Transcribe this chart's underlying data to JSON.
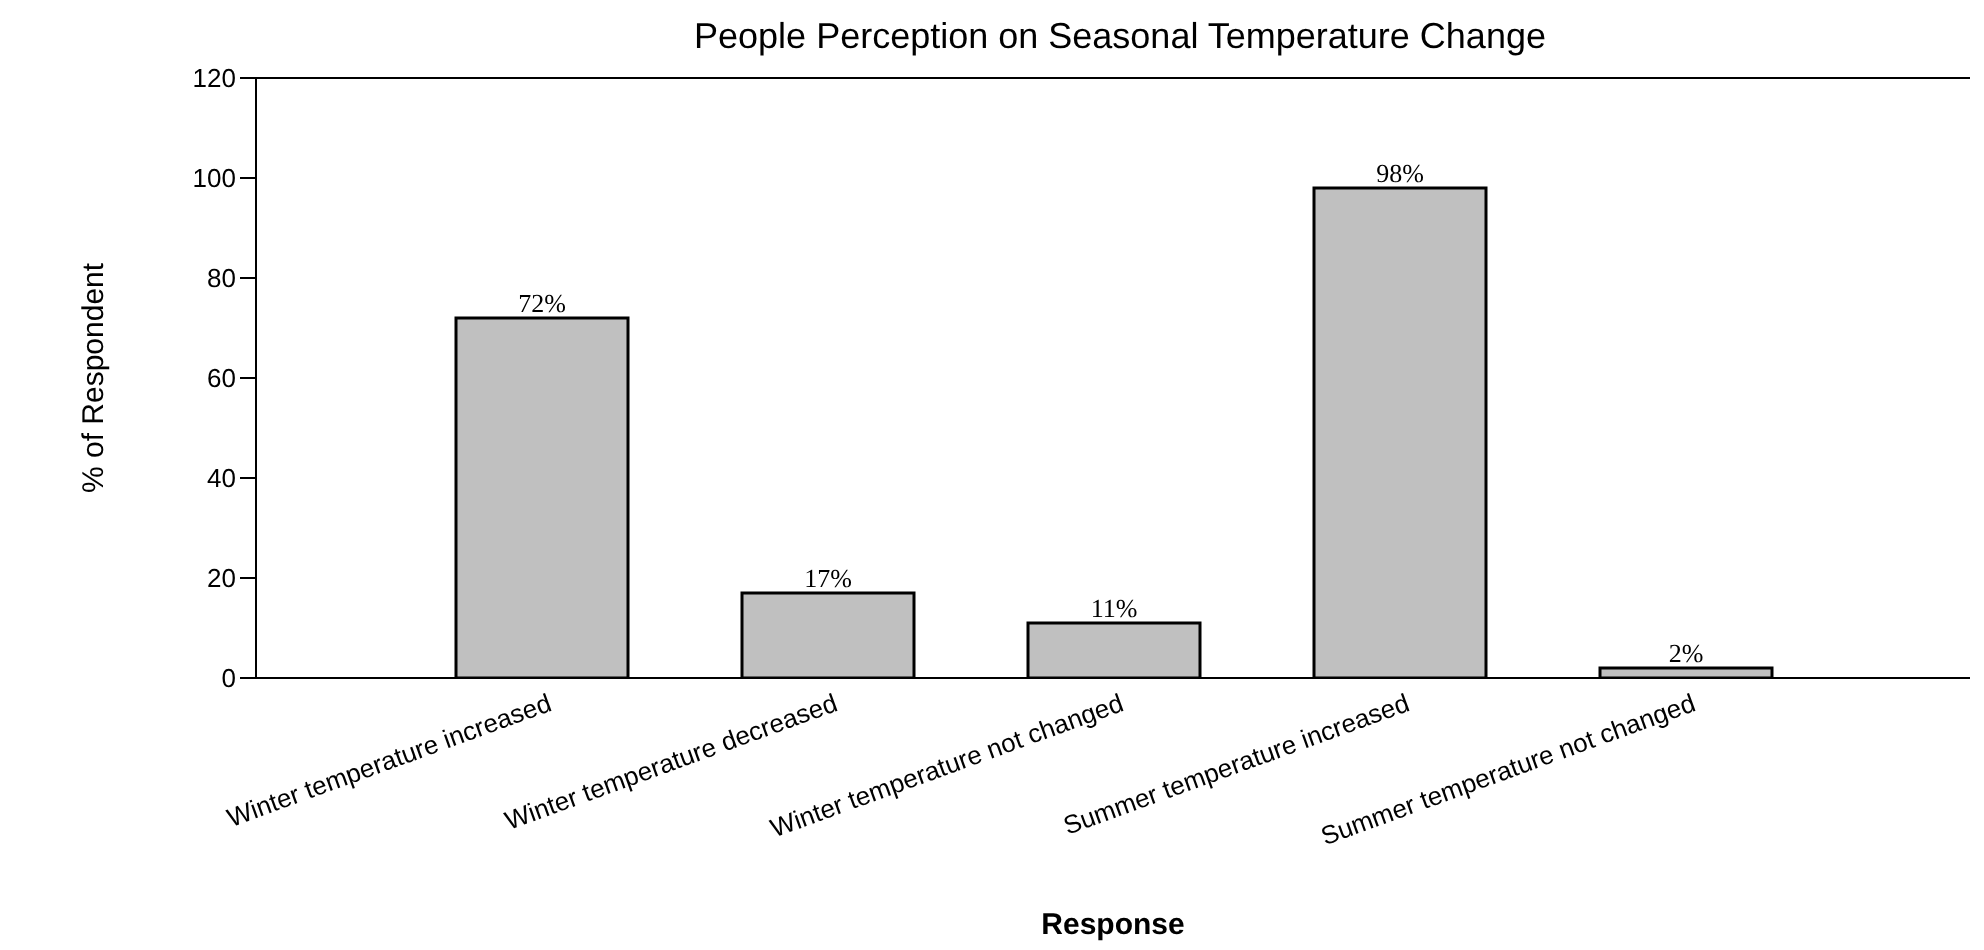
{
  "chart_data": {
    "type": "bar",
    "title": "People Perception on Seasonal Temperature Change",
    "xlabel": "Response",
    "ylabel": "% of Respondent",
    "categories": [
      "Winter temperature increased",
      "Winter temperature decreased",
      "Winter temperature not changed",
      "Summer temperature increased",
      "Summer temperature not changed"
    ],
    "values": [
      72,
      17,
      11,
      98,
      2
    ],
    "value_labels": [
      "72%",
      "17%",
      "11%",
      "98%",
      "2%"
    ],
    "color": "#c0c0c0",
    "ylim": [
      0,
      120
    ],
    "yticks": [
      0,
      20,
      40,
      60,
      80,
      100,
      120
    ],
    "grid": false,
    "legend": false
  }
}
